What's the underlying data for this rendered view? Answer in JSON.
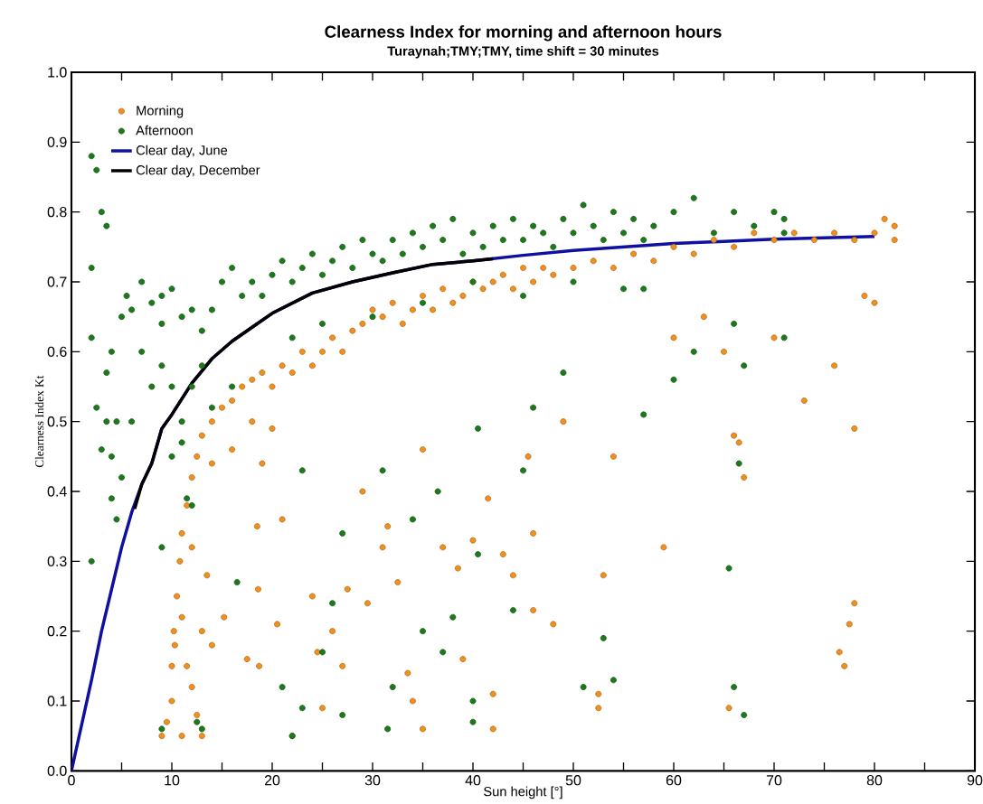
{
  "chart_data": {
    "type": "scatter",
    "title": "Clearness Index for morning and afternoon hours",
    "subtitle": "Turaynah;TMY;TMY, time shift = 30 minutes",
    "xlabel": "Sun height [°]",
    "ylabel": "Clearness Index Kt",
    "xlim": [
      0,
      90
    ],
    "ylim": [
      0,
      1
    ],
    "xticks": [
      0,
      {
        "value": 5,
        "label": null
      },
      10,
      {
        "value": 15,
        "label": null
      },
      20,
      {
        "value": 25,
        "label": null
      },
      30,
      {
        "value": 35,
        "label": null
      },
      40,
      {
        "value": 45,
        "label": null
      },
      50,
      {
        "value": 55,
        "label": null
      },
      60,
      {
        "value": 65,
        "label": null
      },
      70,
      {
        "value": 75,
        "label": null
      },
      80,
      {
        "value": 85,
        "label": null
      },
      90
    ],
    "yticks": [
      {
        "value": 0,
        "label": "0.0"
      },
      {
        "value": 0.1,
        "label": "0.1"
      },
      {
        "value": 0.2,
        "label": "0.2"
      },
      {
        "value": 0.3,
        "label": "0.3"
      },
      {
        "value": 0.4,
        "label": "0.4"
      },
      {
        "value": 0.5,
        "label": "0.5"
      },
      {
        "value": 0.6,
        "label": "0.6"
      },
      {
        "value": 0.7,
        "label": "0.7"
      },
      {
        "value": 0.8,
        "label": "0.8"
      },
      {
        "value": 0.9,
        "label": "0.9"
      },
      {
        "value": 1,
        "label": "1.0"
      }
    ],
    "legend": "top left",
    "series": [
      {
        "name": "Morning",
        "marker": "circle",
        "color": "#f0901e",
        "x": [
          9,
          9.5,
          10,
          10,
          10.2,
          10.5,
          10.3,
          11,
          10.8,
          11,
          11.5,
          12,
          12.5,
          13,
          14,
          15,
          16,
          17,
          18,
          19,
          20,
          21,
          22,
          23,
          24,
          25,
          26,
          27,
          28,
          29,
          30,
          31,
          32,
          33,
          34,
          35,
          36,
          37,
          38,
          39,
          40,
          41,
          42,
          43,
          44,
          45,
          46,
          47,
          48,
          50,
          52,
          54,
          56,
          58,
          60,
          62,
          64,
          66,
          68,
          70,
          72,
          74,
          76,
          78,
          80,
          81,
          82,
          82,
          18,
          16,
          20,
          14,
          12,
          11.5,
          12,
          13,
          11,
          12.5,
          13.5,
          14,
          13,
          15.2,
          17.5,
          18.7,
          18.6,
          19,
          18.5,
          21,
          20.5,
          22,
          24,
          24.5,
          25,
          26,
          27,
          27.5,
          29,
          29.5,
          31,
          31.5,
          32.5,
          33.5,
          34,
          35,
          35,
          37,
          38.5,
          39,
          40,
          41.5,
          42,
          42,
          43,
          44,
          45.5,
          46,
          46,
          48,
          49,
          52.5,
          52.5,
          53,
          54,
          59,
          60,
          63,
          65.5,
          66,
          66.5,
          67,
          76.5,
          77,
          77.5,
          78,
          78,
          76,
          79,
          80,
          73,
          65,
          70
        ],
        "values": [
          0.05,
          0.07,
          0.1,
          0.15,
          0.2,
          0.25,
          0.18,
          0.22,
          0.3,
          0.34,
          0.38,
          0.42,
          0.45,
          0.48,
          0.5,
          0.52,
          0.53,
          0.55,
          0.56,
          0.57,
          0.55,
          0.58,
          0.57,
          0.6,
          0.58,
          0.6,
          0.62,
          0.6,
          0.63,
          0.64,
          0.66,
          0.65,
          0.67,
          0.64,
          0.66,
          0.68,
          0.66,
          0.69,
          0.67,
          0.68,
          0.7,
          0.69,
          0.7,
          0.71,
          0.69,
          0.72,
          0.7,
          0.72,
          0.71,
          0.72,
          0.73,
          0.72,
          0.74,
          0.73,
          0.75,
          0.74,
          0.76,
          0.75,
          0.77,
          0.76,
          0.77,
          0.76,
          0.77,
          0.76,
          0.77,
          0.79,
          0.76,
          0.78,
          0.5,
          0.46,
          0.49,
          0.44,
          0.32,
          0.15,
          0.12,
          0.05,
          0.05,
          0.08,
          0.28,
          0.18,
          0.2,
          0.22,
          0.16,
          0.15,
          0.26,
          0.44,
          0.35,
          0.36,
          0.21,
          0.05,
          0.25,
          0.17,
          0.09,
          0.2,
          0.15,
          0.26,
          0.4,
          0.24,
          0.32,
          0.35,
          0.27,
          0.14,
          0.1,
          0.06,
          0.46,
          0.32,
          0.29,
          0.16,
          0.33,
          0.39,
          0.11,
          0.06,
          0.31,
          0.28,
          0.45,
          0.23,
          0.34,
          0.21,
          0.5,
          0.11,
          0.09,
          0.28,
          0.45,
          0.32,
          0.62,
          0.65,
          0.09,
          0.48,
          0.47,
          0.42,
          0.17,
          0.15,
          0.21,
          0.24,
          0.49,
          0.58,
          0.68,
          0.67,
          0.53,
          0.6,
          0.62
        ]
      },
      {
        "name": "Afternoon",
        "marker": "circle",
        "color": "#1c7a1c",
        "x": [
          2,
          2.5,
          3,
          3.5,
          2,
          2,
          2.5,
          3,
          3.5,
          2,
          4,
          4.5,
          5,
          4,
          4.5,
          3.5,
          4,
          5,
          5.5,
          6,
          7,
          8,
          9,
          9,
          10,
          11,
          12,
          13,
          14,
          15,
          16,
          17,
          18,
          19,
          20,
          21,
          22,
          23,
          24,
          25,
          26,
          27,
          28,
          29,
          30,
          31,
          32,
          33,
          34,
          35,
          36,
          37,
          38,
          39,
          40,
          41,
          42,
          43,
          44,
          45,
          46,
          47,
          48,
          49,
          50,
          51,
          52,
          53,
          54,
          55,
          56,
          57,
          58,
          60,
          62,
          64,
          66,
          68,
          70,
          71,
          71,
          9,
          10,
          11,
          12,
          8,
          10,
          11,
          13,
          7,
          6,
          16,
          14,
          22,
          25,
          30,
          35,
          40,
          45,
          50,
          55,
          57,
          62,
          66,
          71,
          67,
          9,
          11.5,
          12,
          12.5,
          13,
          9,
          16.5,
          21,
          22,
          23,
          23,
          25,
          26,
          27,
          27,
          31,
          31.5,
          32,
          34,
          35,
          36.5,
          38,
          37,
          40,
          40,
          40.5,
          40.5,
          44,
          45,
          46,
          51,
          53,
          54,
          57,
          65.5,
          66,
          67,
          66.5,
          60,
          49
        ],
        "values": [
          0.88,
          0.86,
          0.8,
          0.78,
          0.72,
          0.62,
          0.52,
          0.46,
          0.5,
          0.3,
          0.39,
          0.36,
          0.42,
          0.45,
          0.5,
          0.57,
          0.6,
          0.65,
          0.68,
          0.66,
          0.7,
          0.67,
          0.64,
          0.68,
          0.69,
          0.65,
          0.66,
          0.63,
          0.66,
          0.7,
          0.72,
          0.68,
          0.7,
          0.68,
          0.71,
          0.73,
          0.7,
          0.72,
          0.74,
          0.71,
          0.73,
          0.75,
          0.72,
          0.76,
          0.74,
          0.73,
          0.76,
          0.74,
          0.77,
          0.75,
          0.78,
          0.76,
          0.79,
          0.74,
          0.77,
          0.75,
          0.78,
          0.76,
          0.79,
          0.76,
          0.78,
          0.77,
          0.75,
          0.79,
          0.77,
          0.81,
          0.78,
          0.76,
          0.8,
          0.77,
          0.79,
          0.76,
          0.78,
          0.8,
          0.82,
          0.77,
          0.8,
          0.78,
          0.8,
          0.79,
          0.77,
          0.58,
          0.55,
          0.5,
          0.55,
          0.55,
          0.45,
          0.47,
          0.58,
          0.6,
          0.5,
          0.55,
          0.52,
          0.62,
          0.64,
          0.65,
          0.67,
          0.7,
          0.68,
          0.7,
          0.69,
          0.69,
          0.6,
          0.64,
          0.62,
          0.58,
          0.32,
          0.39,
          0.38,
          0.07,
          0.06,
          0.06,
          0.27,
          0.12,
          0.05,
          0.09,
          0.43,
          0.17,
          0.24,
          0.08,
          0.34,
          0.43,
          0.06,
          0.12,
          0.36,
          0.2,
          0.4,
          0.22,
          0.17,
          0.1,
          0.07,
          0.31,
          0.49,
          0.23,
          0.43,
          0.52,
          0.12,
          0.19,
          0.13,
          0.51,
          0.29,
          0.12,
          0.08,
          0.44,
          0.56,
          0.57
        ]
      },
      {
        "name": "Clear day, June",
        "type": "line",
        "marker": "none",
        "color": "#1010a0",
        "x": [
          0,
          1,
          2,
          3,
          4,
          5,
          6,
          7,
          8,
          9,
          10,
          12,
          14,
          16,
          18,
          20,
          24,
          28,
          32,
          36,
          40,
          45,
          50,
          55,
          60,
          65,
          70,
          75,
          80
        ],
        "values": [
          0,
          0.065,
          0.13,
          0.2,
          0.26,
          0.32,
          0.37,
          0.41,
          0.44,
          0.49,
          0.51,
          0.555,
          0.59,
          0.615,
          0.635,
          0.655,
          0.684,
          0.7,
          0.713,
          0.725,
          0.73,
          0.738,
          0.745,
          0.75,
          0.755,
          0.758,
          0.761,
          0.763,
          0.765
        ]
      },
      {
        "name": "Clear day, December",
        "type": "line",
        "marker": "none",
        "color": "#000000",
        "x": [
          6.3,
          7,
          8,
          9,
          10,
          12,
          14,
          16,
          18,
          20,
          24,
          28,
          32,
          36,
          40,
          42
        ],
        "values": [
          0.375,
          0.41,
          0.44,
          0.49,
          0.51,
          0.555,
          0.59,
          0.615,
          0.635,
          0.655,
          0.684,
          0.7,
          0.713,
          0.725,
          0.73,
          0.733
        ]
      }
    ]
  }
}
